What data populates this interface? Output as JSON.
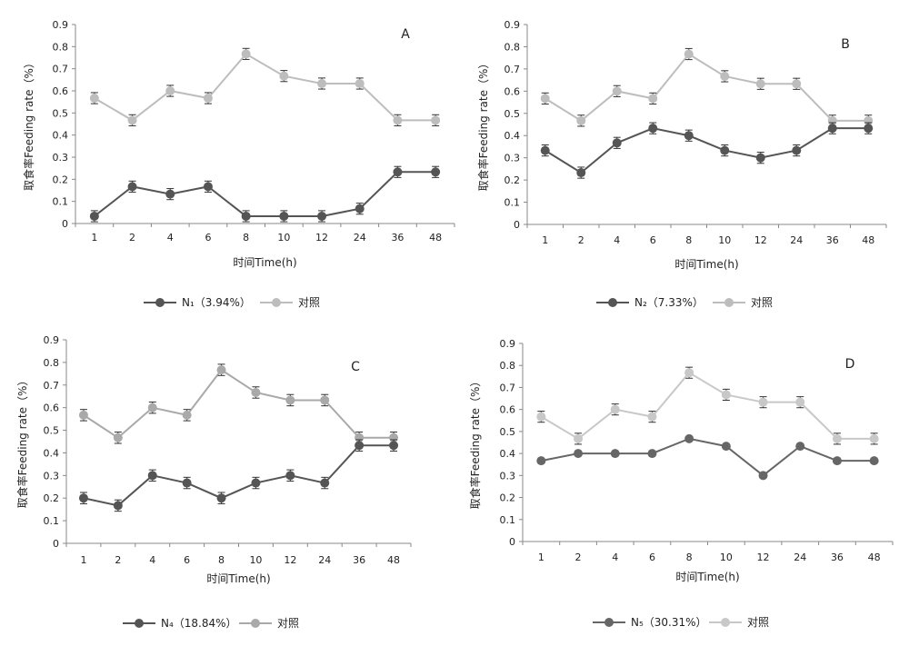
{
  "chart_data": [
    {
      "panel": "A",
      "type": "line",
      "categories": [
        "1",
        "2",
        "4",
        "6",
        "8",
        "10",
        "12",
        "24",
        "36",
        "48"
      ],
      "ylabel": "取食率Feeding rate（%）",
      "xlabel": "时间Time(h)",
      "ylim": [
        0,
        0.9
      ],
      "yticks": [
        "0",
        "0.1",
        "0.2",
        "0.3",
        "0.4",
        "0.5",
        "0.6",
        "0.7",
        "0.8",
        "0.9"
      ],
      "grid": false,
      "legend_placement": "bottom",
      "error_bar": 0.025,
      "series": [
        {
          "name": "N₁（3.94%）",
          "color": "#555555",
          "values": [
            0.033,
            0.167,
            0.133,
            0.167,
            0.033,
            0.033,
            0.033,
            0.067,
            0.233,
            0.233
          ]
        },
        {
          "name": "对照",
          "color": "#bdbdbd",
          "values": [
            0.567,
            0.467,
            0.6,
            0.567,
            0.767,
            0.667,
            0.633,
            0.633,
            0.467,
            0.467
          ]
        }
      ]
    },
    {
      "panel": "B",
      "type": "line",
      "categories": [
        "1",
        "2",
        "4",
        "6",
        "8",
        "10",
        "12",
        "24",
        "36",
        "48"
      ],
      "ylabel": "取食率Feeding rate（%）",
      "xlabel": "时间Time(h)",
      "ylim": [
        0,
        0.9
      ],
      "yticks": [
        "0",
        "0.1",
        "0.2",
        "0.3",
        "0.4",
        "0.5",
        "0.6",
        "0.7",
        "0.8",
        "0.9"
      ],
      "grid": false,
      "legend_placement": "bottom",
      "error_bar": 0.025,
      "series": [
        {
          "name": "N₂（7.33%）",
          "color": "#555555",
          "values": [
            0.333,
            0.233,
            0.367,
            0.433,
            0.4,
            0.333,
            0.3,
            0.333,
            0.433,
            0.433
          ]
        },
        {
          "name": "对照",
          "color": "#bdbdbd",
          "values": [
            0.567,
            0.467,
            0.6,
            0.567,
            0.767,
            0.667,
            0.633,
            0.633,
            0.467,
            0.467
          ]
        }
      ]
    },
    {
      "panel": "C",
      "type": "line",
      "categories": [
        "1",
        "2",
        "4",
        "6",
        "8",
        "10",
        "12",
        "24",
        "36",
        "48"
      ],
      "ylabel": "取食率Feeding rate（%）",
      "xlabel": "时间Time(h)",
      "ylim": [
        0,
        0.9
      ],
      "yticks": [
        "0",
        "0.1",
        "0.2",
        "0.3",
        "0.4",
        "0.5",
        "0.6",
        "0.7",
        "0.8",
        "0.9"
      ],
      "grid": false,
      "legend_placement": "bottom",
      "error_bar": 0.025,
      "series": [
        {
          "name": "N₄（18.84%）",
          "color": "#555555",
          "values": [
            0.2,
            0.167,
            0.3,
            0.267,
            0.2,
            0.267,
            0.3,
            0.267,
            0.433,
            0.433
          ]
        },
        {
          "name": "对照",
          "color": "#a9a9a9",
          "values": [
            0.567,
            0.467,
            0.6,
            0.567,
            0.767,
            0.667,
            0.633,
            0.633,
            0.467,
            0.467
          ]
        }
      ]
    },
    {
      "panel": "D",
      "type": "line",
      "categories": [
        "1",
        "2",
        "4",
        "6",
        "8",
        "10",
        "12",
        "24",
        "36",
        "48"
      ],
      "ylabel": "取食率Feeding rate（%）",
      "xlabel": "时间Time(h)",
      "ylim": [
        0,
        0.9
      ],
      "yticks": [
        "0",
        "0.1",
        "0.2",
        "0.3",
        "0.4",
        "0.5",
        "0.6",
        "0.7",
        "0.8",
        "0.9"
      ],
      "grid": false,
      "legend_placement": "bottom",
      "error_bar": 0.025,
      "series": [
        {
          "name": "N₅（30.31%）",
          "color": "#666666",
          "values": [
            0.367,
            0.4,
            0.4,
            0.4,
            0.467,
            0.433,
            0.3,
            0.433,
            0.367,
            0.367
          ],
          "error_bars": false
        },
        {
          "name": "对照",
          "color": "#c8c8c8",
          "values": [
            0.567,
            0.467,
            0.6,
            0.567,
            0.767,
            0.667,
            0.633,
            0.633,
            0.467,
            0.467
          ]
        }
      ]
    }
  ]
}
